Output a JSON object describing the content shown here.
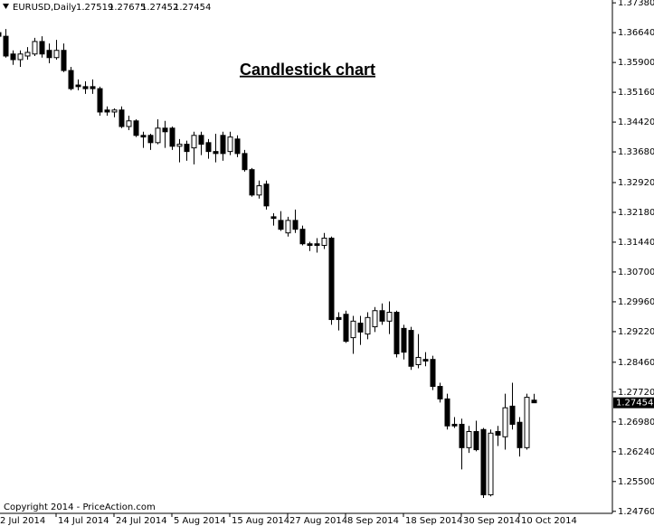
{
  "chart_data": {
    "type": "candlestick",
    "symbol": "EURUSD,Daily",
    "title": "Candlestick chart",
    "footer": "Copyright 2014 - PriceAction.com",
    "categories": [
      "2 Jul 2014",
      null,
      null,
      null,
      null,
      null,
      null,
      null,
      "14 Jul 2014",
      null,
      null,
      null,
      null,
      null,
      null,
      null,
      "24 Jul 2014",
      null,
      null,
      null,
      null,
      null,
      null,
      null,
      "5 Aug 2014",
      null,
      null,
      null,
      null,
      null,
      null,
      null,
      "15 Aug 2014",
      null,
      null,
      null,
      null,
      null,
      null,
      null,
      "27 Aug 2014",
      null,
      null,
      null,
      null,
      null,
      null,
      null,
      "8 Sep 2014",
      null,
      null,
      null,
      null,
      null,
      null,
      null,
      "18 Sep 2014",
      null,
      null,
      null,
      null,
      null,
      null,
      null,
      "30 Sep 2014",
      null,
      null,
      null,
      null,
      null,
      null,
      null,
      "10 Oct 2014",
      null,
      null
    ],
    "open": [
      1.3664,
      1.3655,
      1.3611,
      1.3597,
      1.3606,
      1.3611,
      1.3642,
      1.362,
      1.3602,
      1.362,
      1.357,
      1.3534,
      1.353,
      1.353,
      1.3525,
      1.3472,
      1.3467,
      1.3472,
      1.3431,
      1.3445,
      1.3409,
      1.3409,
      1.3391,
      1.3427,
      1.3427,
      1.3382,
      1.3387,
      1.3378,
      1.3409,
      1.3391,
      1.3369,
      1.3409,
      1.3369,
      1.34,
      1.3364,
      1.3324,
      1.3261,
      1.3288,
      1.3207,
      1.3198,
      1.3167,
      1.3198,
      1.3176,
      1.314,
      1.314,
      1.3136,
      1.3154,
      1.2957,
      1.2965,
      1.2907,
      1.2943,
      1.2916,
      1.2934,
      1.2974,
      1.2948,
      1.297,
      1.293,
      1.2925,
      1.284,
      1.2853,
      1.2853,
      1.2786,
      1.2755,
      1.2692,
      1.2692,
      1.2634,
      1.2674,
      1.2679,
      1.2517,
      1.2674,
      1.2661,
      1.2737,
      1.2697,
      1.2634,
      1.27519
    ],
    "high": [
      1.3678,
      1.3673,
      1.362,
      1.362,
      1.3628,
      1.3651,
      1.3655,
      1.3637,
      1.3646,
      1.3637,
      1.3579,
      1.3548,
      1.3543,
      1.3548,
      1.353,
      1.3481,
      1.3476,
      1.3481,
      1.3458,
      1.3449,
      1.3418,
      1.3413,
      1.3449,
      1.3445,
      1.3431,
      1.34,
      1.3396,
      1.3418,
      1.3418,
      1.34,
      1.3413,
      1.3418,
      1.3418,
      1.3409,
      1.3373,
      1.3328,
      1.3297,
      1.3297,
      1.3216,
      1.3221,
      1.3207,
      1.3225,
      1.3185,
      1.3145,
      1.3154,
      1.3167,
      1.3158,
      1.297,
      1.2974,
      1.2961,
      1.2961,
      1.297,
      1.2983,
      1.2992,
      1.2997,
      1.2974,
      1.2939,
      1.2934,
      1.2916,
      1.2871,
      1.2862,
      1.2795,
      1.2768,
      1.271,
      1.2706,
      1.2688,
      1.2701,
      1.2683,
      1.2679,
      1.2688,
      1.2768,
      1.2795,
      1.271,
      1.2768,
      1.27675
    ],
    "low": [
      1.3651,
      1.3602,
      1.3584,
      1.3579,
      1.3597,
      1.3606,
      1.3602,
      1.3588,
      1.3597,
      1.3566,
      1.3521,
      1.3521,
      1.3512,
      1.3512,
      1.3458,
      1.3458,
      1.3454,
      1.3427,
      1.3422,
      1.3405,
      1.3378,
      1.3373,
      1.3387,
      1.3378,
      1.3373,
      1.3342,
      1.3346,
      1.3337,
      1.336,
      1.3351,
      1.3342,
      1.3346,
      1.336,
      1.3355,
      1.3319,
      1.3257,
      1.3252,
      1.3225,
      1.3185,
      1.3172,
      1.3158,
      1.3167,
      1.3136,
      1.3122,
      1.3118,
      1.3127,
      1.2939,
      1.2925,
      1.2894,
      1.2867,
      1.2889,
      1.2903,
      1.2921,
      1.2939,
      1.2916,
      1.2858,
      1.2853,
      1.2827,
      1.2831,
      1.2836,
      1.2777,
      1.2746,
      1.2679,
      1.2683,
      1.258,
      1.2621,
      1.2625,
      1.2509,
      1.2513,
      1.2638,
      1.2629,
      1.2679,
      1.2612,
      1.2629,
      1.27452
    ],
    "close": [
      1.3655,
      1.3606,
      1.3597,
      1.3611,
      1.3615,
      1.3642,
      1.3611,
      1.3602,
      1.362,
      1.357,
      1.3525,
      1.353,
      1.3525,
      1.3525,
      1.3467,
      1.3467,
      1.3472,
      1.3431,
      1.3445,
      1.3409,
      1.3405,
      1.3391,
      1.3427,
      1.3418,
      1.3382,
      1.3387,
      1.3369,
      1.3409,
      1.3387,
      1.3369,
      1.3364,
      1.3364,
      1.3405,
      1.3364,
      1.3324,
      1.3261,
      1.3284,
      1.3234,
      1.3203,
      1.3176,
      1.3198,
      1.3176,
      1.314,
      1.3136,
      1.3136,
      1.3154,
      1.2952,
      1.2952,
      1.2898,
      1.2948,
      1.2921,
      1.2957,
      1.2974,
      1.2948,
      1.297,
      1.2867,
      1.2871,
      1.2836,
      1.2858,
      1.2849,
      1.2786,
      1.2755,
      1.2688,
      1.2688,
      1.2634,
      1.2674,
      1.2629,
      1.2517,
      1.267,
      1.2665,
      1.2733,
      1.2692,
      1.2634,
      1.2759,
      1.27454
    ],
    "ylim": [
      1.2471,
      1.3745
    ],
    "yticks": [
      {
        "value": 1.3738,
        "label": "1.37380"
      },
      {
        "value": 1.3664,
        "label": "1.36640"
      },
      {
        "value": 1.359,
        "label": "1.35900"
      },
      {
        "value": 1.3516,
        "label": "1.35160"
      },
      {
        "value": 1.3442,
        "label": "1.34420"
      },
      {
        "value": 1.3368,
        "label": "1.33680"
      },
      {
        "value": 1.3292,
        "label": "1.32920"
      },
      {
        "value": 1.3218,
        "label": "1.32180"
      },
      {
        "value": 1.3144,
        "label": "1.31440"
      },
      {
        "value": 1.307,
        "label": "1.30700"
      },
      {
        "value": 1.2996,
        "label": "1.29960"
      },
      {
        "value": 1.2922,
        "label": "1.29220"
      },
      {
        "value": 1.2846,
        "label": "1.28460"
      },
      {
        "value": 1.2772,
        "label": "1.27720"
      },
      {
        "value": 1.2698,
        "label": "1.26980"
      },
      {
        "value": 1.2624,
        "label": "1.26240"
      },
      {
        "value": 1.255,
        "label": "1.25500"
      },
      {
        "value": 1.2476,
        "label": "1.24760"
      }
    ],
    "up_color": "#ffffff",
    "down_color": "#000000",
    "wick_color": "#000000"
  }
}
